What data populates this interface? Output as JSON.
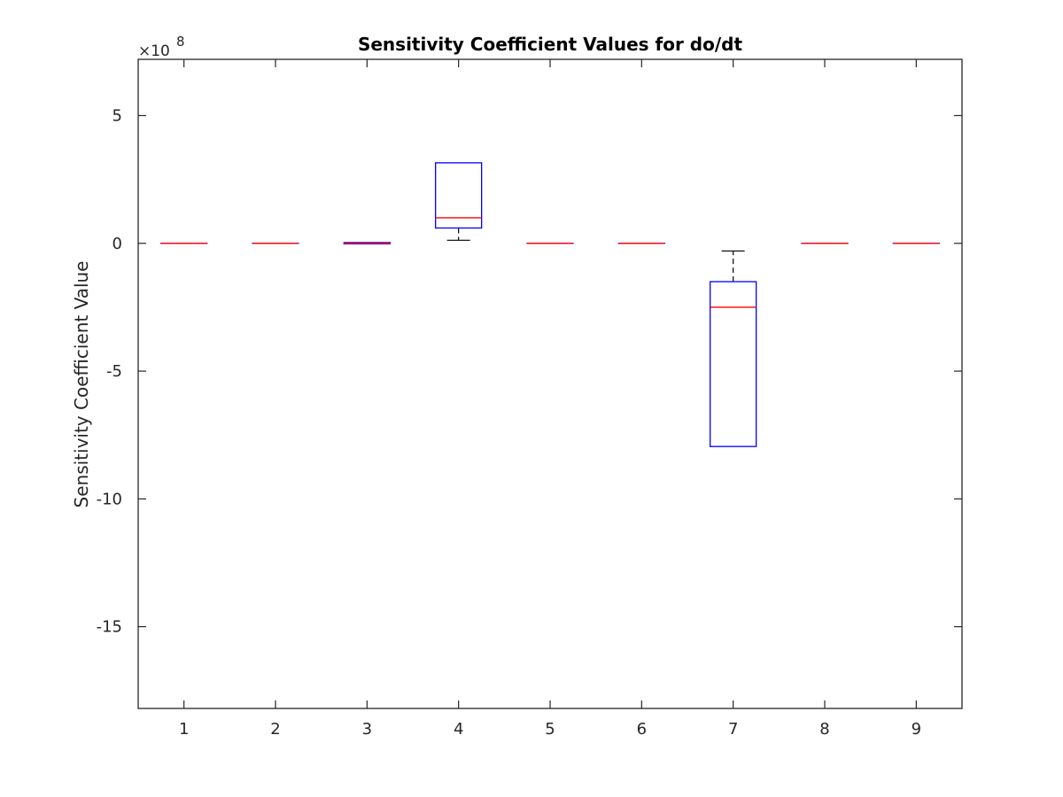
{
  "chart_data": {
    "type": "box",
    "title": "Sensitivity Coefficient Values for do/dt",
    "xlabel": "",
    "ylabel": "Sensitivity Coefficient Value",
    "y_exponent_label": "×10",
    "y_exponent_power": "8",
    "y_multiplier": 100000000,
    "ylim": [
      -18.2,
      7.2
    ],
    "xlim": [
      0.5,
      9.5
    ],
    "y_ticks": [
      5,
      0,
      -5,
      -10,
      -15
    ],
    "y_tick_labels": [
      "5",
      "0",
      "-5",
      "-10",
      "-15"
    ],
    "categories": [
      "1",
      "2",
      "3",
      "4",
      "5",
      "6",
      "7",
      "8",
      "9"
    ],
    "boxes": [
      {
        "q1": 0,
        "median": 0,
        "q3": 0,
        "whisker_low": 0,
        "whisker_high": 0
      },
      {
        "q1": 0,
        "median": 0,
        "q3": 0,
        "whisker_low": 0,
        "whisker_high": 0
      },
      {
        "q1": -0.02,
        "median": 0,
        "q3": 0.03,
        "whisker_low": -0.02,
        "whisker_high": 0.03
      },
      {
        "q1": 0.6,
        "median": 1.0,
        "q3": 3.15,
        "whisker_low": 0.12,
        "whisker_high": 3.15
      },
      {
        "q1": 0,
        "median": 0,
        "q3": 0,
        "whisker_low": 0,
        "whisker_high": 0
      },
      {
        "q1": 0,
        "median": 0,
        "q3": 0,
        "whisker_low": 0,
        "whisker_high": 0
      },
      {
        "q1": -7.95,
        "median": -2.5,
        "q3": -1.5,
        "whisker_low": -7.95,
        "whisker_high": -0.3
      },
      {
        "q1": 0,
        "median": 0,
        "q3": 0,
        "whisker_low": 0,
        "whisker_high": 0
      },
      {
        "q1": 0,
        "median": 0,
        "q3": 0,
        "whisker_low": 0,
        "whisker_high": 0
      }
    ],
    "colors": {
      "box": "#0000ff",
      "median": "#ff0000",
      "whisker": "#000000",
      "axis": "#262626"
    },
    "grid": false,
    "legend": "none"
  }
}
